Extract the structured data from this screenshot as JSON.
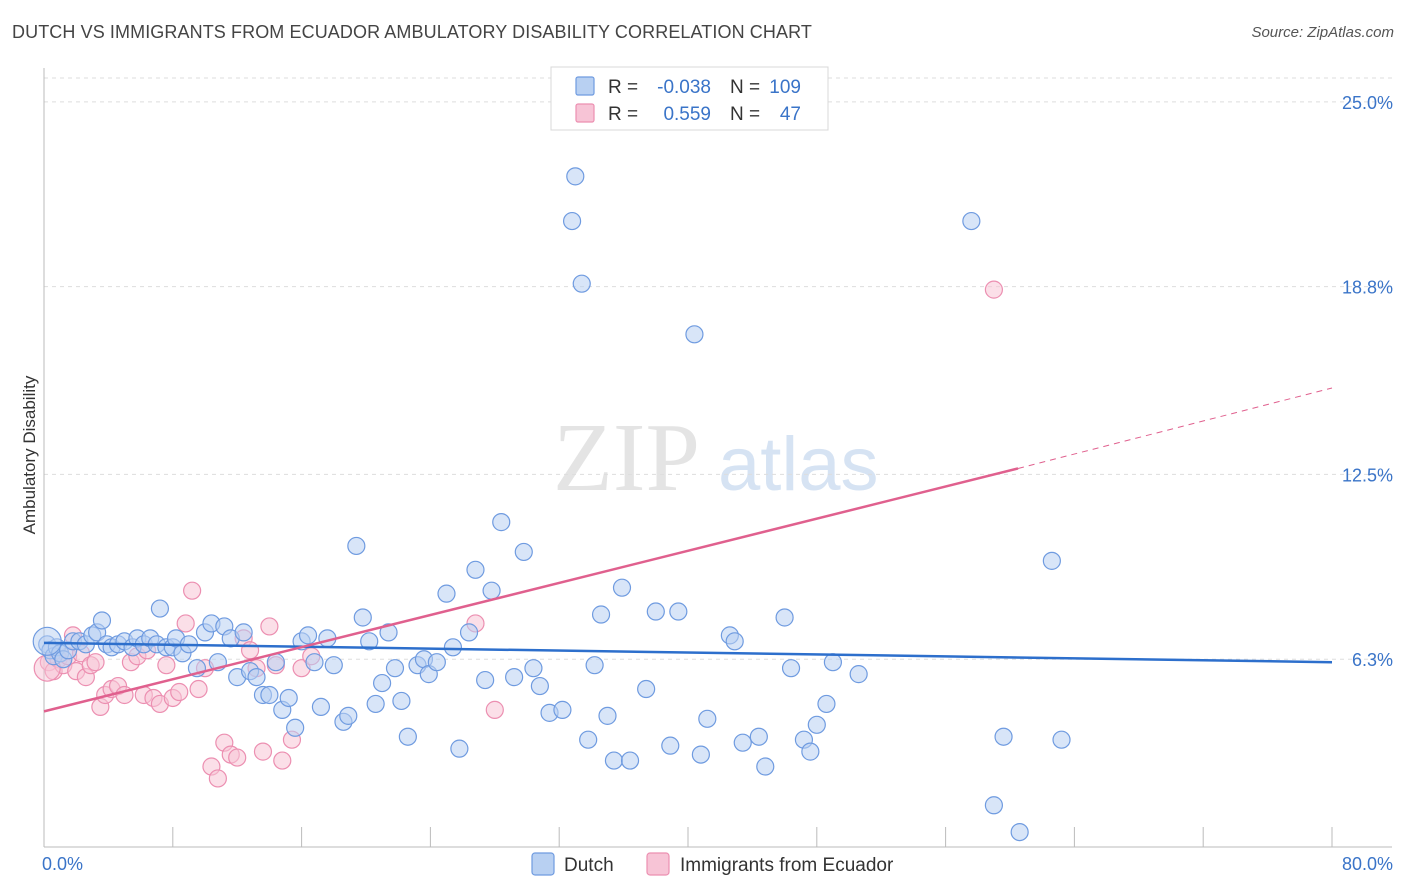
{
  "title": "DUTCH VS IMMIGRANTS FROM ECUADOR AMBULATORY DISABILITY CORRELATION CHART",
  "source": "Source: ZipAtlas.com",
  "watermark": {
    "zip": "ZIP",
    "atlas": "atlas"
  },
  "colors": {
    "dutch_fill": "#b8d0f2",
    "dutch_stroke": "#6f9be0",
    "dutch_line": "#2d6fcc",
    "ecu_fill": "#f7c4d6",
    "ecu_stroke": "#ec8fb1",
    "ecu_line": "#e0608e",
    "axis_label": "#3a74c8",
    "grid": "#dddddd"
  },
  "legend_top": {
    "rows": [
      {
        "series": "Dutch",
        "r_label": "R =",
        "r_value": "-0.038",
        "n_label": "N =",
        "n_value": "109"
      },
      {
        "series": "Immigrants from Ecuador",
        "r_label": "R =",
        "r_value": "0.559",
        "n_label": "N =",
        "n_value": "47"
      }
    ]
  },
  "chart_data": {
    "type": "scatter",
    "title": "DUTCH VS IMMIGRANTS FROM ECUADOR AMBULATORY DISABILITY CORRELATION CHART",
    "xlabel": "",
    "ylabel": "Ambulatory Disability",
    "xlim": [
      0,
      80
    ],
    "ylim": [
      0,
      25.8
    ],
    "x_tick_labels": [
      "0.0%",
      "80.0%"
    ],
    "y_ticks": [
      6.3,
      12.5,
      18.8,
      25.0
    ],
    "y_tick_labels": [
      "6.3%",
      "12.5%",
      "18.8%",
      "25.0%"
    ],
    "grid": "horizontal dashed",
    "legend": "bottom-center",
    "series": [
      {
        "name": "Dutch",
        "r": -0.038,
        "n": 109,
        "trend": {
          "x": [
            0,
            80
          ],
          "y": [
            6.85,
            6.2
          ]
        },
        "points": [
          [
            0.2,
            6.8
          ],
          [
            0.4,
            6.6
          ],
          [
            0.6,
            6.4
          ],
          [
            0.8,
            6.7
          ],
          [
            1.0,
            6.5
          ],
          [
            1.2,
            6.3
          ],
          [
            1.5,
            6.6
          ],
          [
            1.8,
            6.9
          ],
          [
            2.2,
            6.9
          ],
          [
            2.6,
            6.8
          ],
          [
            3.0,
            7.1
          ],
          [
            3.3,
            7.2
          ],
          [
            3.6,
            7.6
          ],
          [
            3.9,
            6.8
          ],
          [
            4.2,
            6.7
          ],
          [
            4.6,
            6.8
          ],
          [
            5.0,
            6.9
          ],
          [
            5.5,
            6.7
          ],
          [
            5.8,
            7.0
          ],
          [
            6.2,
            6.8
          ],
          [
            6.6,
            7.0
          ],
          [
            7.0,
            6.8
          ],
          [
            7.2,
            8.0
          ],
          [
            7.6,
            6.7
          ],
          [
            8.0,
            6.7
          ],
          [
            8.2,
            7.0
          ],
          [
            8.6,
            6.5
          ],
          [
            9.0,
            6.8
          ],
          [
            9.5,
            6.0
          ],
          [
            10.0,
            7.2
          ],
          [
            10.4,
            7.5
          ],
          [
            10.8,
            6.2
          ],
          [
            11.2,
            7.4
          ],
          [
            11.6,
            7.0
          ],
          [
            12.0,
            5.7
          ],
          [
            12.4,
            7.2
          ],
          [
            12.8,
            5.9
          ],
          [
            13.2,
            5.7
          ],
          [
            13.6,
            5.1
          ],
          [
            14.0,
            5.1
          ],
          [
            14.4,
            6.2
          ],
          [
            14.8,
            4.6
          ],
          [
            15.2,
            5.0
          ],
          [
            15.6,
            4.0
          ],
          [
            16.0,
            6.9
          ],
          [
            16.4,
            7.1
          ],
          [
            16.8,
            6.2
          ],
          [
            17.2,
            4.7
          ],
          [
            17.6,
            7.0
          ],
          [
            18.0,
            6.1
          ],
          [
            18.6,
            4.2
          ],
          [
            18.9,
            4.4
          ],
          [
            19.4,
            10.1
          ],
          [
            19.8,
            7.7
          ],
          [
            20.2,
            6.9
          ],
          [
            20.6,
            4.8
          ],
          [
            21.0,
            5.5
          ],
          [
            21.4,
            7.2
          ],
          [
            21.8,
            6.0
          ],
          [
            22.2,
            4.9
          ],
          [
            22.6,
            3.7
          ],
          [
            23.2,
            6.1
          ],
          [
            23.6,
            6.3
          ],
          [
            23.9,
            5.8
          ],
          [
            24.4,
            6.2
          ],
          [
            25.0,
            8.5
          ],
          [
            25.4,
            6.7
          ],
          [
            25.8,
            3.3
          ],
          [
            26.4,
            7.2
          ],
          [
            26.8,
            9.3
          ],
          [
            27.4,
            5.6
          ],
          [
            27.8,
            8.6
          ],
          [
            28.4,
            10.9
          ],
          [
            29.2,
            5.7
          ],
          [
            29.8,
            9.9
          ],
          [
            30.4,
            6.0
          ],
          [
            30.8,
            5.4
          ],
          [
            31.4,
            4.5
          ],
          [
            32.2,
            4.6
          ],
          [
            32.8,
            21.0
          ],
          [
            33.0,
            22.5
          ],
          [
            33.4,
            18.9
          ],
          [
            33.8,
            3.6
          ],
          [
            34.2,
            6.1
          ],
          [
            34.6,
            7.8
          ],
          [
            35.0,
            4.4
          ],
          [
            35.4,
            2.9
          ],
          [
            35.9,
            8.7
          ],
          [
            36.4,
            2.9
          ],
          [
            37.4,
            5.3
          ],
          [
            38.0,
            7.9
          ],
          [
            38.9,
            3.4
          ],
          [
            39.4,
            7.9
          ],
          [
            40.4,
            17.2
          ],
          [
            40.8,
            3.1
          ],
          [
            41.2,
            4.3
          ],
          [
            42.6,
            7.1
          ],
          [
            42.9,
            6.9
          ],
          [
            43.4,
            3.5
          ],
          [
            44.4,
            3.7
          ],
          [
            44.8,
            2.7
          ],
          [
            46.0,
            7.7
          ],
          [
            46.4,
            6.0
          ],
          [
            47.2,
            3.6
          ],
          [
            47.6,
            3.2
          ],
          [
            48.0,
            4.1
          ],
          [
            48.6,
            4.8
          ],
          [
            49.0,
            6.2
          ],
          [
            50.6,
            5.8
          ],
          [
            57.6,
            21.0
          ],
          [
            59.0,
            1.4
          ],
          [
            59.6,
            3.7
          ],
          [
            60.6,
            0.5
          ],
          [
            62.6,
            9.6
          ],
          [
            63.2,
            3.6
          ]
        ]
      },
      {
        "name": "Immigrants from Ecuador",
        "r": 0.559,
        "n": 47,
        "trend": {
          "x": [
            0,
            60.5
          ],
          "y": [
            4.55,
            12.7
          ],
          "dashed_to": {
            "x": 80,
            "y": 15.4
          }
        },
        "points": [
          [
            0.3,
            6.2
          ],
          [
            0.6,
            5.9
          ],
          [
            0.9,
            6.3
          ],
          [
            1.2,
            6.1
          ],
          [
            1.5,
            6.4
          ],
          [
            1.8,
            7.1
          ],
          [
            2.0,
            5.9
          ],
          [
            2.3,
            6.5
          ],
          [
            2.6,
            5.7
          ],
          [
            2.9,
            6.1
          ],
          [
            3.2,
            6.2
          ],
          [
            3.5,
            4.7
          ],
          [
            3.8,
            5.1
          ],
          [
            4.2,
            5.3
          ],
          [
            4.6,
            5.4
          ],
          [
            5.0,
            5.1
          ],
          [
            5.4,
            6.2
          ],
          [
            5.8,
            6.4
          ],
          [
            6.2,
            5.1
          ],
          [
            6.4,
            6.6
          ],
          [
            6.8,
            5.0
          ],
          [
            7.2,
            4.8
          ],
          [
            7.6,
            6.1
          ],
          [
            8.0,
            5.0
          ],
          [
            8.4,
            5.2
          ],
          [
            8.8,
            7.5
          ],
          [
            9.2,
            8.6
          ],
          [
            9.6,
            5.3
          ],
          [
            10.0,
            6.0
          ],
          [
            10.4,
            2.7
          ],
          [
            10.8,
            2.3
          ],
          [
            11.2,
            3.5
          ],
          [
            11.6,
            3.1
          ],
          [
            12.0,
            3.0
          ],
          [
            12.4,
            7.0
          ],
          [
            12.8,
            6.6
          ],
          [
            13.2,
            6.0
          ],
          [
            13.6,
            3.2
          ],
          [
            14.0,
            7.4
          ],
          [
            14.4,
            6.1
          ],
          [
            14.8,
            2.9
          ],
          [
            15.4,
            3.6
          ],
          [
            16.0,
            6.0
          ],
          [
            16.6,
            6.4
          ],
          [
            26.8,
            7.5
          ],
          [
            28.0,
            4.6
          ],
          [
            59.0,
            18.7
          ]
        ]
      }
    ]
  },
  "legend_bottom": [
    {
      "label": "Dutch"
    },
    {
      "label": "Immigrants from Ecuador"
    }
  ]
}
